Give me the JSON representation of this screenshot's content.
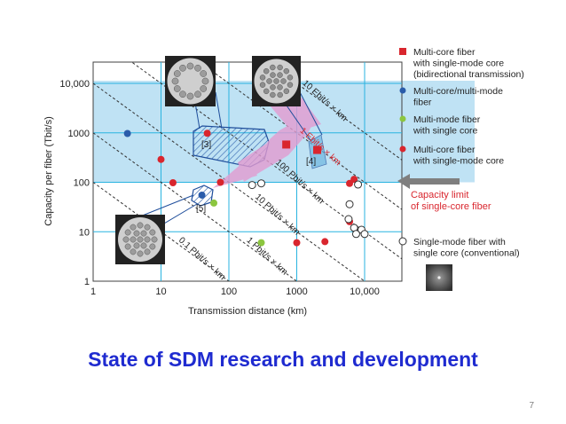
{
  "slide": {
    "title": "State of SDM research and development",
    "page_number": "7"
  },
  "colors": {
    "band": "#bfe2f4",
    "grid": "#29b3e0",
    "mc_sm_bidir": "#d9262e",
    "mc_mm": "#2a5caa",
    "mm_sc": "#8cc63f",
    "mc_sm": "#d9262e",
    "sm_conv": "#ffffff",
    "capacity_arrow": "#7f7f7f",
    "capacity_text": "#d9262e",
    "pink_arrow": "#e8a0d0",
    "hatch_region": "#1f4e9b"
  },
  "chart_data": {
    "type": "scatter",
    "x_scale": "log",
    "y_scale": "log",
    "xlabel": "Transmission distance (km)",
    "ylabel": "Capacity per fiber (Tbit/s)",
    "xlim": [
      1,
      20000
    ],
    "ylim": [
      1,
      20000
    ],
    "x_ticks": [
      {
        "value": 1,
        "label": "1"
      },
      {
        "value": 10,
        "label": "10"
      },
      {
        "value": 100,
        "label": "100"
      },
      {
        "value": 1000,
        "label": "1000"
      },
      {
        "value": 10000,
        "label": "10,000"
      }
    ],
    "y_ticks": [
      {
        "value": 1,
        "label": "1"
      },
      {
        "value": 10,
        "label": "10"
      },
      {
        "value": 100,
        "label": "100"
      },
      {
        "value": 1000,
        "label": "1000"
      },
      {
        "value": 10000,
        "label": "10,000"
      }
    ],
    "highlight_band": {
      "y_from": 100,
      "y_to": 10000
    },
    "capacity_limit": {
      "value": 100,
      "label": [
        "Capacity limit",
        "of single-core fiber"
      ]
    },
    "iso_lines": [
      {
        "product": 0.1,
        "label": "0.1 Pbit/s × km"
      },
      {
        "product": 1,
        "label": "1 Pbit/s × km"
      },
      {
        "product": 10,
        "label": "10 Pbit/s × km"
      },
      {
        "product": 100,
        "label": "100 Pbit/s × km"
      },
      {
        "product": 1000,
        "label": "1 Ebit/s × km"
      },
      {
        "product": 10000,
        "label": "10 Ebit/s × km"
      }
    ],
    "regions": [
      {
        "label": "[3]"
      },
      {
        "label": "[4]"
      },
      {
        "label": "[5]"
      }
    ],
    "series": [
      {
        "name": "Multi-core fiber with single-mode core (bidirectional transmission)",
        "legend": [
          "Multi-core fiber",
          "with single-mode core",
          "(bidirectional transmission)"
        ],
        "marker": "square",
        "points": [
          [
            700,
            580
          ],
          [
            2000,
            450
          ]
        ]
      },
      {
        "name": "Multi-core/multi-mode fiber",
        "legend": [
          "Multi-core/multi-mode",
          "fiber"
        ],
        "marker": "circle",
        "points": [
          [
            3.2,
            970
          ],
          [
            40,
            55
          ]
        ]
      },
      {
        "name": "Multi-mode fiber with single core",
        "legend": [
          "Multi-mode fiber",
          "with single core"
        ],
        "marker": "circle",
        "points": [
          [
            60,
            38
          ],
          [
            300,
            6
          ]
        ]
      },
      {
        "name": "Multi-core fiber with single-mode core",
        "legend": [
          "Multi-core fiber",
          "with single-mode core"
        ],
        "marker": "circle",
        "points": [
          [
            48,
            980
          ],
          [
            10,
            290
          ],
          [
            15,
            98
          ],
          [
            75,
            100
          ],
          [
            6000,
            95
          ],
          [
            7000,
            115
          ],
          [
            6000,
            16
          ],
          [
            1000,
            6
          ],
          [
            2600,
            6.3
          ]
        ]
      },
      {
        "name": "Single-mode fiber with single core (conventional)",
        "legend": [
          "Single-mode fiber with",
          "single core (conventional)"
        ],
        "marker": "open-circle",
        "points": [
          [
            220,
            88
          ],
          [
            300,
            95
          ],
          [
            8000,
            90
          ],
          [
            6000,
            36
          ],
          [
            5800,
            18
          ],
          [
            7000,
            12
          ],
          [
            9000,
            11
          ],
          [
            10000,
            9
          ],
          [
            7500,
            9
          ]
        ]
      }
    ]
  }
}
